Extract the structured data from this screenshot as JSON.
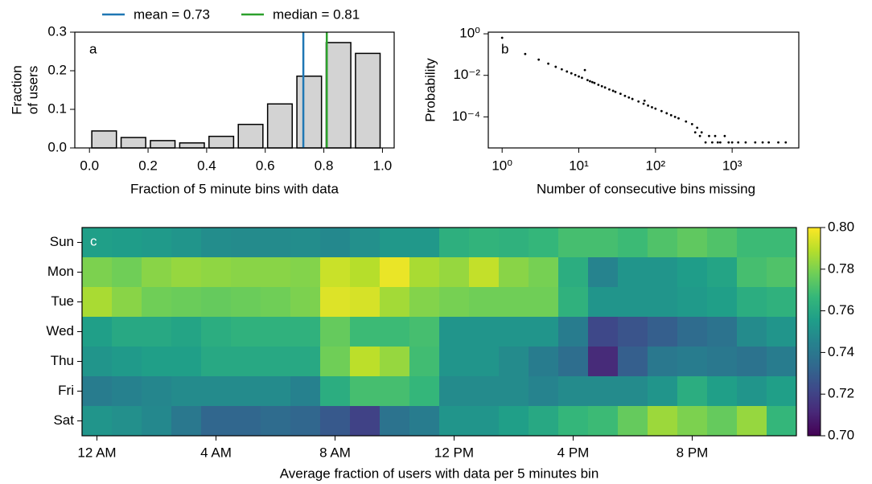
{
  "chart_data": [
    {
      "type": "histogram",
      "panel_label": "a",
      "bins": [
        0,
        0.1,
        0.2,
        0.3,
        0.4,
        0.5,
        0.6,
        0.7,
        0.8,
        0.9,
        1
      ],
      "values": [
        0.044,
        0.027,
        0.019,
        0.013,
        0.03,
        0.061,
        0.114,
        0.186,
        0.273,
        0.245
      ],
      "color": "#d3d3d3",
      "edgecolor": "#000000",
      "xlabel": "Fraction of 5 minute bins with data",
      "ylabel": [
        "Fraction",
        "of users"
      ],
      "xlim": [
        -0.05,
        1.04
      ],
      "ylim": [
        0,
        0.3
      ],
      "xticks": [
        {
          "value": 0,
          "label": "0.0"
        },
        0.2,
        0.4,
        0.6,
        0.8,
        {
          "value": 1,
          "label": "1.0"
        }
      ],
      "yticks": [
        {
          "value": 0,
          "label": "0.0"
        },
        0.1,
        0.2,
        0.3
      ],
      "vlines": [
        {
          "name": "mean = 0.73",
          "value": 0.73,
          "color": "#1f77b4"
        },
        {
          "name": "median = 0.81",
          "value": 0.81,
          "color": "#2ca02c"
        }
      ]
    },
    {
      "type": "scatter",
      "panel_label": "b",
      "color": "#000000",
      "xscale": "log",
      "yscale": "log",
      "x": [
        1,
        2,
        3,
        4,
        5,
        6,
        7,
        8,
        9,
        10,
        11,
        12,
        13,
        14,
        15,
        16,
        18,
        20,
        22,
        25,
        28,
        30,
        35,
        40,
        45,
        50,
        60,
        70,
        72,
        80,
        90,
        100,
        120,
        140,
        160,
        180,
        200,
        250,
        300,
        330,
        350,
        380,
        400,
        450,
        500,
        550,
        600,
        650,
        700,
        800,
        900,
        1000,
        1200,
        1500,
        2000,
        2500,
        3000,
        4000,
        5000
      ],
      "y": [
        0.64,
        0.107,
        0.057,
        0.0365,
        0.0258,
        0.0195,
        0.0153,
        0.0125,
        0.0104,
        0.0088,
        0.0076,
        0.018,
        0.0059,
        0.0052,
        0.0047,
        0.0043,
        0.0035,
        0.003,
        0.0026,
        0.0021,
        0.0018,
        0.0016,
        0.0013,
        0.00103,
        0.00086,
        0.00073,
        0.00055,
        0.00043,
        0.0006,
        0.00035,
        0.00029,
        0.00025,
        0.00019,
        0.00015,
        0.00012,
        0.0001,
        8.5e-05,
        6e-05,
        4.5e-05,
        1.8e-05,
        3e-05,
        1.2e-05,
        1.8e-05,
        5.9e-06,
        1.2e-05,
        5.9e-06,
        1.2e-05,
        5.9e-06,
        5.9e-06,
        1.2e-05,
        5.9e-06,
        5.9e-06,
        5.9e-06,
        5.9e-06,
        5.9e-06,
        5.9e-06,
        5.9e-06,
        5.9e-06,
        5.9e-06
      ],
      "xlim": [
        0.66,
        7400
      ],
      "ylim": [
        3.2e-06,
        1.2
      ],
      "xticks": [
        {
          "value": 1,
          "label": "10⁰"
        },
        {
          "value": 10,
          "label": "10¹"
        },
        {
          "value": 100,
          "label": "10²"
        },
        {
          "value": 1000,
          "label": "10³"
        }
      ],
      "yticks": [
        {
          "value": 0.0001,
          "label": "10⁻⁴"
        },
        {
          "value": 0.01,
          "label": "10⁻²"
        },
        {
          "value": 1,
          "label": "10⁰"
        }
      ],
      "xlabel": "Number of consecutive bins missing",
      "ylabel": "Probability"
    },
    {
      "type": "heatmap",
      "panel_label": "c",
      "rows": [
        "Sun",
        "Mon",
        "Tue",
        "Wed",
        "Thu",
        "Fri",
        "Sat"
      ],
      "categories": [
        "12 AM",
        null,
        null,
        null,
        "4 AM",
        null,
        null,
        null,
        "8 AM",
        null,
        null,
        null,
        "12 PM",
        null,
        null,
        null,
        "4 PM",
        null,
        null,
        null,
        "8 PM",
        null,
        null,
        null
      ],
      "values": [
        [
          0.756,
          0.755,
          0.754,
          0.752,
          0.749,
          0.748,
          0.748,
          0.749,
          0.747,
          0.75,
          0.753,
          0.753,
          0.763,
          0.765,
          0.764,
          0.766,
          0.77,
          0.77,
          0.768,
          0.772,
          0.775,
          0.772,
          0.768,
          0.768
        ],
        [
          0.78,
          0.778,
          0.782,
          0.784,
          0.783,
          0.782,
          0.782,
          0.781,
          0.792,
          0.789,
          0.797,
          0.787,
          0.784,
          0.791,
          0.782,
          0.779,
          0.762,
          0.745,
          0.752,
          0.752,
          0.755,
          0.758,
          0.77,
          0.772
        ],
        [
          0.787,
          0.782,
          0.778,
          0.777,
          0.776,
          0.777,
          0.778,
          0.78,
          0.795,
          0.794,
          0.786,
          0.781,
          0.779,
          0.778,
          0.778,
          0.778,
          0.764,
          0.752,
          0.752,
          0.752,
          0.754,
          0.756,
          0.762,
          0.764
        ],
        [
          0.756,
          0.76,
          0.76,
          0.758,
          0.762,
          0.764,
          0.764,
          0.764,
          0.776,
          0.768,
          0.768,
          0.77,
          0.752,
          0.752,
          0.752,
          0.752,
          0.742,
          0.722,
          0.726,
          0.73,
          0.735,
          0.738,
          0.748,
          0.752
        ],
        [
          0.752,
          0.754,
          0.756,
          0.756,
          0.76,
          0.76,
          0.76,
          0.76,
          0.778,
          0.79,
          0.784,
          0.769,
          0.752,
          0.752,
          0.748,
          0.742,
          0.736,
          0.712,
          0.73,
          0.74,
          0.742,
          0.74,
          0.738,
          0.742
        ],
        [
          0.742,
          0.744,
          0.746,
          0.748,
          0.748,
          0.748,
          0.748,
          0.744,
          0.762,
          0.77,
          0.77,
          0.766,
          0.748,
          0.748,
          0.748,
          0.745,
          0.748,
          0.748,
          0.748,
          0.752,
          0.762,
          0.756,
          0.752,
          0.756
        ],
        [
          0.752,
          0.75,
          0.747,
          0.74,
          0.733,
          0.733,
          0.735,
          0.733,
          0.728,
          0.72,
          0.738,
          0.742,
          0.752,
          0.752,
          0.756,
          0.76,
          0.766,
          0.768,
          0.776,
          0.785,
          0.78,
          0.776,
          0.784,
          0.766
        ]
      ],
      "colormap": [
        "#440154",
        "#482878",
        "#3e4989",
        "#31688e",
        "#26828e",
        "#1f9e89",
        "#35b779",
        "#6ece58",
        "#b5de2b",
        "#fde725"
      ],
      "clim": [
        0.7,
        0.8
      ],
      "colorbar_ticks": [
        {
          "value": 0.7,
          "label": "0.70"
        },
        0.72,
        0.74,
        0.76,
        0.78,
        {
          "value": 0.8,
          "label": "0.80"
        }
      ],
      "xlabel": "Average fraction of users with data per 5 minutes bin"
    }
  ]
}
